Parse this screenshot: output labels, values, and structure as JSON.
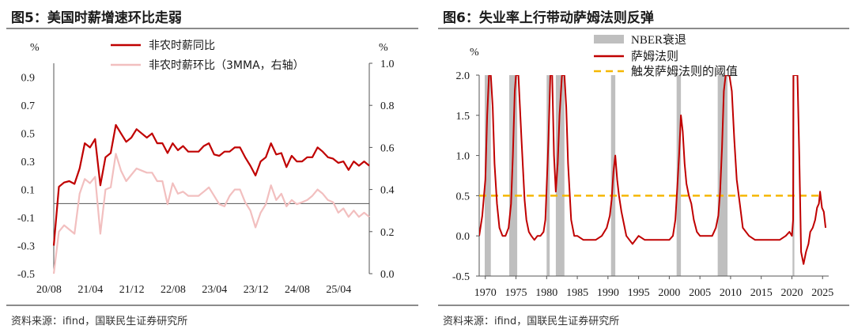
{
  "left": {
    "title": "图5：美国时薪增速环比走弱",
    "source": "资料来源：ifind，国联民生证券研究所"
  },
  "right": {
    "title": "图6：失业率上行带动萨姆法则反弹",
    "source": "资料来源：ifind，国联民生证券研究所"
  },
  "chart_data": [
    {
      "type": "line",
      "title": "图5：美国时薪增速环比走弱",
      "y_unit_left": "%",
      "y_unit_right": "%",
      "ylim_left": [
        -0.5,
        1.0
      ],
      "ylim_right": [
        0.0,
        1.0
      ],
      "yticks_left": [
        "-0.5",
        "-0.3",
        "-0.1",
        "0.1",
        "0.3",
        "0.5",
        "0.7",
        "0.9"
      ],
      "yticks_right": [
        "0.0",
        "0.2",
        "0.4",
        "0.6",
        "0.8",
        "1.0"
      ],
      "xticks": [
        "20/08",
        "21/04",
        "21/12",
        "22/08",
        "23/04",
        "23/12",
        "24/08",
        "25/04"
      ],
      "x_start": "2020-08",
      "legend": [
        "非农时薪同比",
        "非农时薪环比（3MMA，右轴）"
      ],
      "series": [
        {
          "name": "非农时薪同比",
          "axis": "left",
          "color": "#c00000",
          "values": [
            -0.3,
            0.12,
            0.15,
            0.16,
            0.14,
            0.25,
            0.43,
            0.4,
            0.46,
            0.13,
            0.33,
            0.36,
            0.56,
            0.5,
            0.44,
            0.47,
            0.53,
            0.5,
            0.47,
            0.5,
            0.43,
            0.43,
            0.36,
            0.43,
            0.38,
            0.41,
            0.37,
            0.37,
            0.37,
            0.41,
            0.43,
            0.35,
            0.34,
            0.37,
            0.37,
            0.4,
            0.4,
            0.33,
            0.27,
            0.2,
            0.3,
            0.33,
            0.43,
            0.35,
            0.36,
            0.26,
            0.34,
            0.3,
            0.3,
            0.33,
            0.33,
            0.4,
            0.37,
            0.33,
            0.32,
            0.29,
            0.3,
            0.24,
            0.3,
            0.27,
            0.3,
            0.27
          ]
        },
        {
          "name": "非农时薪环比（3MMA，右轴）",
          "axis": "right",
          "color": "#f2bfbf",
          "values": [
            0.0,
            0.2,
            0.23,
            0.21,
            0.19,
            0.38,
            0.45,
            0.43,
            0.46,
            0.19,
            0.4,
            0.41,
            0.57,
            0.49,
            0.44,
            0.47,
            0.5,
            0.49,
            0.48,
            0.48,
            0.44,
            0.44,
            0.33,
            0.43,
            0.38,
            0.39,
            0.37,
            0.37,
            0.37,
            0.39,
            0.41,
            0.37,
            0.33,
            0.32,
            0.37,
            0.4,
            0.4,
            0.34,
            0.3,
            0.22,
            0.29,
            0.33,
            0.42,
            0.35,
            0.38,
            0.32,
            0.35,
            0.33,
            0.34,
            0.35,
            0.37,
            0.4,
            0.38,
            0.35,
            0.34,
            0.29,
            0.31,
            0.27,
            0.3,
            0.27,
            0.29,
            0.27
          ]
        }
      ]
    },
    {
      "type": "line",
      "title": "图6：失业率上行带动萨姆法则反弹",
      "y_unit": "%",
      "ylim": [
        -0.5,
        2.0
      ],
      "yticks": [
        "-0.5",
        "0.0",
        "0.5",
        "1.0",
        "1.5",
        "2.0"
      ],
      "xlim": [
        1969,
        2026
      ],
      "xticks": [
        "1970",
        "1975",
        "1980",
        "1985",
        "1990",
        "1995",
        "2000",
        "2005",
        "2010",
        "2015",
        "2020",
        "2025"
      ],
      "xtick_values": [
        1970,
        1975,
        1980,
        1985,
        1990,
        1995,
        2000,
        2005,
        2010,
        2015,
        2020,
        2025
      ],
      "legend": [
        "NBER衰退",
        "萨姆法则",
        "触发萨姆法则的阈值"
      ],
      "recessions": [
        [
          1969.9,
          1970.9
        ],
        [
          1973.9,
          1975.2
        ],
        [
          1980.0,
          1980.5
        ],
        [
          1981.5,
          1982.9
        ],
        [
          1990.5,
          1991.2
        ],
        [
          2001.2,
          2001.9
        ],
        [
          2007.9,
          2009.5
        ],
        [
          2020.1,
          2020.4
        ]
      ],
      "threshold": 0.5,
      "threshold_color": "#f5b700",
      "recession_color": "#bfbfbf",
      "series": [
        {
          "name": "萨姆法则",
          "color": "#c00000",
          "x": [
            1969.0,
            1969.5,
            1970.0,
            1970.3,
            1970.6,
            1970.9,
            1971.2,
            1971.5,
            1971.9,
            1972.3,
            1972.8,
            1973.3,
            1973.8,
            1974.2,
            1974.5,
            1974.8,
            1975.0,
            1975.4,
            1975.9,
            1976.4,
            1976.7,
            1977.1,
            1977.5,
            1978.0,
            1978.5,
            1979.0,
            1979.5,
            1979.8,
            1980.0,
            1980.3,
            1980.6,
            1980.9,
            1981.2,
            1981.5,
            1981.8,
            1982.1,
            1982.5,
            1982.9,
            1983.2,
            1983.5,
            1984.0,
            1984.5,
            1985.0,
            1986.0,
            1987.0,
            1988.0,
            1989.0,
            1989.8,
            1990.3,
            1990.6,
            1990.9,
            1991.2,
            1991.5,
            1991.8,
            1992.2,
            1992.6,
            1993.0,
            1993.5,
            1994.0,
            1995.0,
            1996.0,
            1997.0,
            1998.0,
            1999.0,
            2000.0,
            2000.6,
            2001.0,
            2001.3,
            2001.6,
            2001.9,
            2002.2,
            2002.5,
            2002.8,
            2003.2,
            2003.6,
            2004.0,
            2004.5,
            2005.0,
            2006.0,
            2007.0,
            2007.6,
            2008.0,
            2008.3,
            2008.6,
            2008.9,
            2009.2,
            2009.5,
            2009.8,
            2010.2,
            2010.6,
            2011.0,
            2011.5,
            2012.0,
            2013.0,
            2014.0,
            2015.0,
            2016.0,
            2017.0,
            2018.0,
            2019.0,
            2019.6,
            2020.0,
            2020.2,
            2020.25,
            2020.4,
            2020.6,
            2020.9,
            2021.2,
            2021.5,
            2021.9,
            2022.3,
            2022.7,
            2023.0,
            2023.4,
            2023.8,
            2024.1,
            2024.4,
            2024.6,
            2024.9,
            2025.2,
            2025.5
          ],
          "y": [
            0.0,
            0.25,
            0.7,
            1.5,
            2.0,
            2.0,
            1.6,
            0.9,
            0.4,
            0.1,
            0.0,
            0.0,
            0.1,
            0.4,
            1.0,
            1.8,
            2.0,
            2.0,
            1.2,
            0.45,
            0.2,
            0.05,
            0.0,
            -0.05,
            0.0,
            0.0,
            0.05,
            0.2,
            0.6,
            1.2,
            2.0,
            2.0,
            1.0,
            0.55,
            0.9,
            1.5,
            2.0,
            2.0,
            1.6,
            0.9,
            0.2,
            0.0,
            0.0,
            -0.05,
            -0.05,
            -0.05,
            0.0,
            0.1,
            0.25,
            0.45,
            0.8,
            1.0,
            0.7,
            0.5,
            0.3,
            0.15,
            0.0,
            -0.05,
            -0.1,
            0.0,
            -0.05,
            -0.05,
            -0.05,
            -0.05,
            -0.05,
            0.0,
            0.2,
            0.6,
            1.0,
            1.5,
            1.3,
            0.9,
            0.65,
            0.5,
            0.4,
            0.2,
            0.05,
            0.0,
            0.0,
            0.0,
            0.1,
            0.25,
            0.55,
            1.1,
            1.8,
            2.0,
            2.0,
            2.0,
            1.8,
            1.2,
            0.7,
            0.4,
            0.1,
            0.0,
            -0.05,
            -0.05,
            -0.05,
            -0.05,
            -0.05,
            0.0,
            0.05,
            0.0,
            0.2,
            2.0,
            2.0,
            2.0,
            2.0,
            1.0,
            -0.2,
            -0.35,
            -0.2,
            -0.1,
            0.05,
            0.1,
            0.2,
            0.35,
            0.4,
            0.55,
            0.35,
            0.3,
            0.1
          ]
        }
      ]
    }
  ]
}
